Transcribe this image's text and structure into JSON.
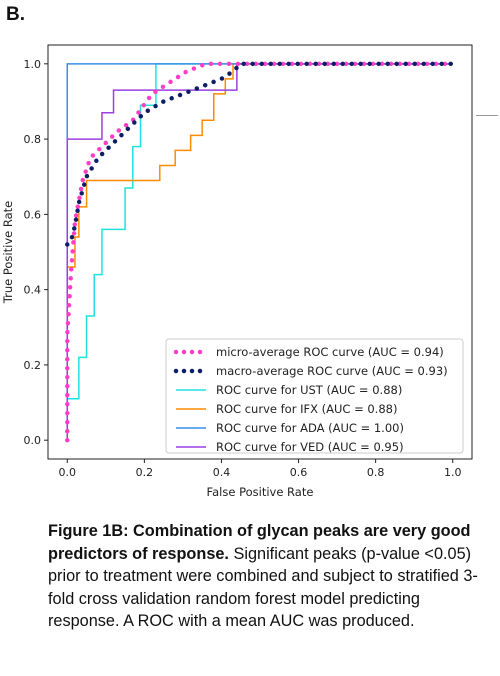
{
  "panel_label": "B.",
  "caption": {
    "bold": "Figure 1B: Combination of glycan peaks are very good predictors of response.",
    "text": " Significant peaks (p-value <0.05) prior to treatment were combined and subject to stratified 3-fold cross validation random forest model predicting response. A ROC with a mean AUC was produced."
  },
  "chart_data": {
    "type": "line",
    "title": "",
    "xlabel": "False Positive Rate",
    "ylabel": "True Positive Rate",
    "xlim": [
      -0.05,
      1.05
    ],
    "ylim": [
      -0.05,
      1.05
    ],
    "xticks": [
      "0.0",
      "0.2",
      "0.4",
      "0.6",
      "0.8",
      "1.0"
    ],
    "yticks": [
      "0.0",
      "0.2",
      "0.4",
      "0.6",
      "0.8",
      "1.0"
    ],
    "grid": false,
    "legend_position": "lower-right",
    "series": [
      {
        "name": "micro-average ROC curve (AUC = 0.94)",
        "color": "#ff3ec8",
        "style": "dotted-thick",
        "x": [
          0,
          0,
          0.01,
          0.02,
          0.04,
          0.06,
          0.09,
          0.13,
          0.17,
          0.22,
          0.25,
          0.28,
          0.31,
          0.36,
          0.43,
          0.45,
          1.0
        ],
        "y": [
          0,
          0.28,
          0.45,
          0.58,
          0.69,
          0.75,
          0.78,
          0.82,
          0.85,
          0.92,
          0.94,
          0.96,
          0.98,
          1.0,
          1.0,
          1.0,
          1.0
        ]
      },
      {
        "name": "macro-average ROC curve (AUC = 0.93)",
        "color": "#0b1e66",
        "style": "dotted-thick",
        "x": [
          0,
          0.01,
          0.02,
          0.03,
          0.05,
          0.08,
          0.11,
          0.15,
          0.2,
          0.25,
          0.3,
          0.35,
          0.4,
          0.43,
          0.45,
          1.0
        ],
        "y": [
          0.52,
          0.53,
          0.57,
          0.63,
          0.7,
          0.75,
          0.78,
          0.82,
          0.87,
          0.9,
          0.92,
          0.94,
          0.96,
          0.98,
          1.0,
          1.0
        ]
      },
      {
        "name": "ROC curve for UST (AUC = 0.88)",
        "color": "#22e0e0",
        "style": "solid",
        "x": [
          0,
          0,
          0.03,
          0.03,
          0.05,
          0.05,
          0.07,
          0.07,
          0.09,
          0.09,
          0.15,
          0.15,
          0.17,
          0.17,
          0.19,
          0.19,
          0.23,
          0.23,
          1.0
        ],
        "y": [
          0,
          0.11,
          0.11,
          0.22,
          0.22,
          0.33,
          0.33,
          0.44,
          0.44,
          0.56,
          0.56,
          0.67,
          0.67,
          0.78,
          0.78,
          0.89,
          0.89,
          1.0,
          1.0
        ]
      },
      {
        "name": "ROC curve for IFX (AUC = 0.88)",
        "color": "#ff8c00",
        "style": "solid",
        "x": [
          0,
          0,
          0.02,
          0.02,
          0.03,
          0.03,
          0.05,
          0.05,
          0.07,
          0.07,
          0.24,
          0.24,
          0.28,
          0.28,
          0.32,
          0.32,
          0.35,
          0.35,
          0.38,
          0.38,
          0.41,
          0.41,
          0.43,
          0.43,
          1.0
        ],
        "y": [
          0,
          0.46,
          0.46,
          0.54,
          0.54,
          0.62,
          0.62,
          0.69,
          0.69,
          0.69,
          0.69,
          0.73,
          0.73,
          0.77,
          0.77,
          0.81,
          0.81,
          0.85,
          0.85,
          0.92,
          0.92,
          0.96,
          0.96,
          1.0,
          1.0
        ]
      },
      {
        "name": "ROC curve for ADA (AUC = 1.00)",
        "color": "#3a8ee6",
        "style": "solid",
        "x": [
          0,
          0,
          1.0
        ],
        "y": [
          0,
          1.0,
          1.0
        ]
      },
      {
        "name": "ROC curve for VED (AUC = 0.95)",
        "color": "#9b3fe0",
        "style": "solid",
        "x": [
          0,
          0,
          0.01,
          0.01,
          0.09,
          0.09,
          0.12,
          0.12,
          0.44,
          0.44,
          1.0
        ],
        "y": [
          0,
          0.8,
          0.8,
          0.8,
          0.8,
          0.87,
          0.87,
          0.93,
          0.93,
          1.0,
          1.0
        ]
      }
    ]
  }
}
